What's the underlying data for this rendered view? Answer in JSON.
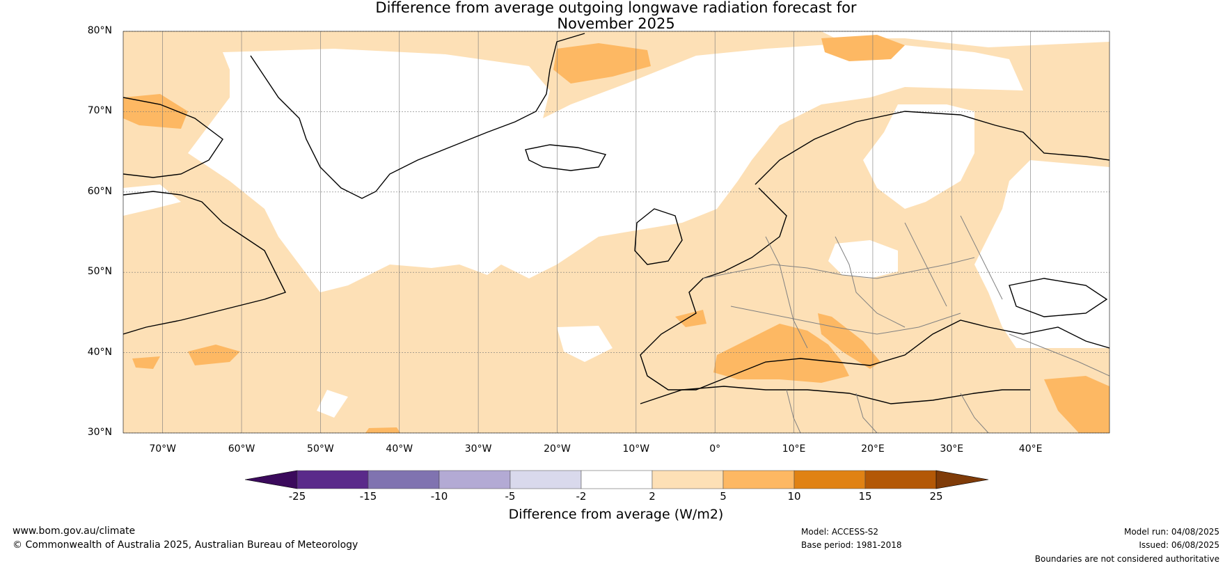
{
  "title": {
    "line1": "Difference from average outgoing longwave radiation forecast for",
    "line2": "November 2025"
  },
  "map": {
    "lat_labels": [
      "80°N",
      "70°N",
      "60°N",
      "50°N",
      "40°N",
      "30°N"
    ],
    "lon_labels": [
      "70°W",
      "60°W",
      "50°W",
      "40°W",
      "30°W",
      "20°W",
      "10°W",
      "0°",
      "10°E",
      "20°E",
      "30°E",
      "40°E"
    ],
    "extent": {
      "lon_min": -75,
      "lon_max": 50,
      "lat_min": 30,
      "lat_max": 80
    }
  },
  "colorbar": {
    "ticks": [
      "-25",
      "-15",
      "-10",
      "-5",
      "-2",
      "2",
      "5",
      "10",
      "15",
      "25"
    ],
    "colors": [
      "#3b0a5c",
      "#5a2a8a",
      "#8073b0",
      "#b3aad4",
      "#d9d9ec",
      "#ffffff",
      "#fde0b6",
      "#fdb863",
      "#e08214",
      "#b35806",
      "#7f3b08"
    ],
    "label": "Difference from average (W/m2)"
  },
  "footer": {
    "website": "www.bom.gov.au/climate",
    "copyright": "© Commonwealth of Australia 2025, Australian Bureau of Meteorology",
    "model": "Model: ACCESS-S2",
    "base_period": "Base period: 1981-2018",
    "model_run": "Model run: 04/08/2025",
    "issued": "Issued: 06/08/2025",
    "disclaimer": "Boundaries are not considered authoritative"
  }
}
